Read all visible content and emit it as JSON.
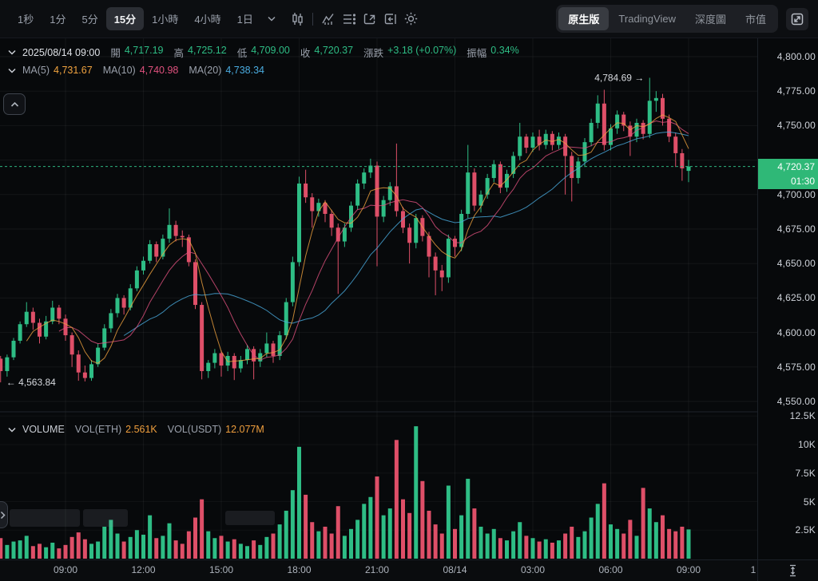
{
  "toolbar": {
    "intervals": [
      {
        "label": "1秒",
        "active": false
      },
      {
        "label": "1分",
        "active": false
      },
      {
        "label": "5分",
        "active": false
      },
      {
        "label": "15分",
        "active": true
      },
      {
        "label": "1小時",
        "active": false
      },
      {
        "label": "4小時",
        "active": false
      },
      {
        "label": "1日",
        "active": false
      }
    ],
    "view_tabs": [
      {
        "label": "原生版",
        "active": true
      },
      {
        "label": "TradingView",
        "active": false
      },
      {
        "label": "深度圖",
        "active": false
      },
      {
        "label": "市值",
        "active": false
      }
    ]
  },
  "legend": {
    "date": "2025/08/14 09:00",
    "fields": [
      {
        "label": "開",
        "value": "4,717.19"
      },
      {
        "label": "高",
        "value": "4,725.12"
      },
      {
        "label": "低",
        "value": "4,709.00"
      },
      {
        "label": "收",
        "value": "4,720.37"
      },
      {
        "label": "漲跌",
        "value": "+3.18 (+0.07%)"
      },
      {
        "label": "振幅",
        "value": "0.34%"
      }
    ]
  },
  "ma_legend": [
    {
      "label": "MA(5)",
      "value": "4,731.67"
    },
    {
      "label": "MA(10)",
      "value": "4,740.98"
    },
    {
      "label": "MA(20)",
      "value": "4,738.34"
    }
  ],
  "volume_legend": {
    "title": "VOLUME",
    "fields": [
      {
        "label": "VOL(ETH)",
        "value": "2.561K"
      },
      {
        "label": "VOL(USDT)",
        "value": "12.077M"
      }
    ]
  },
  "price_axis": {
    "ticks": [
      {
        "label": "4,800.00",
        "price": 4800
      },
      {
        "label": "4,775.00",
        "price": 4775
      },
      {
        "label": "4,750.00",
        "price": 4750
      },
      {
        "label": "4,700.00",
        "price": 4700
      },
      {
        "label": "4,675.00",
        "price": 4675
      },
      {
        "label": "4,650.00",
        "price": 4650
      },
      {
        "label": "4,625.00",
        "price": 4625
      },
      {
        "label": "4,600.00",
        "price": 4600
      },
      {
        "label": "4,575.00",
        "price": 4575
      },
      {
        "label": "4,550.00",
        "price": 4550
      }
    ],
    "badge": {
      "price": "4,720.37",
      "countdown": "01:30"
    }
  },
  "volume_axis": [
    {
      "label": "12.5K",
      "value": 12.5
    },
    {
      "label": "10K",
      "value": 10
    },
    {
      "label": "7.5K",
      "value": 7.5
    },
    {
      "label": "5K",
      "value": 5
    },
    {
      "label": "2.5K",
      "value": 2.5
    }
  ],
  "time_axis": [
    "09:00",
    "12:00",
    "15:00",
    "18:00",
    "21:00",
    "08/14",
    "03:00",
    "06:00",
    "09:00",
    "1"
  ],
  "annotations": {
    "high": "4,784.69",
    "low": "4,563.84"
  },
  "colors": {
    "up": "#2ebd85",
    "down": "#de4f68",
    "ma5": "#f0a33f",
    "ma10": "#e0517e",
    "ma20": "#4aabdf",
    "volume_value": "#ee9e3d",
    "badge_bg": "#2fb877"
  },
  "chart_data": {
    "type": "candlestick",
    "interval": "15分",
    "price_axis_range": [
      4550,
      4800
    ],
    "last_price": 4720.37,
    "high_marker": 4784.69,
    "low_marker": 4563.84,
    "volume_unit": "K",
    "candles": [
      [
        4581,
        4583,
        4563.84,
        4572,
        1.8
      ],
      [
        4572,
        4584,
        4568,
        4582,
        1.2
      ],
      [
        4582,
        4596,
        4580,
        4594,
        1.5
      ],
      [
        4594,
        4608,
        4592,
        4606,
        1.6
      ],
      [
        4606,
        4622,
        4604,
        4615,
        2.0
      ],
      [
        4615,
        4618,
        4602,
        4607,
        1.1
      ],
      [
        4607,
        4610,
        4592,
        4597,
        1.3
      ],
      [
        4597,
        4612,
        4595,
        4608,
        1.0
      ],
      [
        4608,
        4623,
        4606,
        4618,
        1.4
      ],
      [
        4618,
        4620,
        4606,
        4610,
        0.9
      ],
      [
        4610,
        4613,
        4594,
        4598,
        1.2
      ],
      [
        4598,
        4600,
        4575,
        4584,
        1.9
      ],
      [
        4584,
        4587,
        4565,
        4571,
        2.3
      ],
      [
        4571,
        4576,
        4564.5,
        4567,
        1.7
      ],
      [
        4567,
        4580,
        4565,
        4577,
        1.3
      ],
      [
        4577,
        4592,
        4575,
        4589,
        1.5
      ],
      [
        4589,
        4606,
        4587,
        4603,
        2.8
      ],
      [
        4603,
        4617,
        4600,
        4614,
        3.4
      ],
      [
        4614,
        4628,
        4611,
        4625,
        2.2
      ],
      [
        4625,
        4627,
        4613,
        4618,
        1.5
      ],
      [
        4618,
        4635,
        4616,
        4632,
        1.9
      ],
      [
        4632,
        4648,
        4630,
        4645,
        2.5
      ],
      [
        4645,
        4655,
        4642,
        4652,
        2.1
      ],
      [
        4652,
        4667,
        4650,
        4664,
        3.8
      ],
      [
        4664,
        4666,
        4651,
        4655,
        1.8
      ],
      [
        4655,
        4671,
        4653,
        4668,
        2.0
      ],
      [
        4668,
        4690,
        4665,
        4678,
        3.1
      ],
      [
        4678,
        4681,
        4666,
        4670,
        1.6
      ],
      [
        4670,
        4674,
        4662,
        4669,
        1.3
      ],
      [
        4669,
        4671,
        4648,
        4651,
        2.4
      ],
      [
        4651,
        4653,
        4617,
        4620,
        3.6
      ],
      [
        4620,
        4622,
        4566,
        4572,
        5.2
      ],
      [
        4572,
        4580,
        4567,
        4578,
        2.4
      ],
      [
        4578,
        4588,
        4574,
        4585,
        1.8
      ],
      [
        4585,
        4587,
        4568,
        4576,
        2.0
      ],
      [
        4576,
        4586,
        4572,
        4583,
        1.5
      ],
      [
        4583,
        4585,
        4565.5,
        4574,
        1.7
      ],
      [
        4574,
        4583,
        4571,
        4580,
        1.3
      ],
      [
        4580,
        4591,
        4577,
        4588,
        1.1
      ],
      [
        4588,
        4590,
        4566,
        4579,
        1.6
      ],
      [
        4579,
        4588,
        4575,
        4585,
        1.2
      ],
      [
        4585,
        4600,
        4582,
        4592,
        1.9
      ],
      [
        4592,
        4594,
        4578,
        4583,
        2.2
      ],
      [
        4583,
        4601,
        4580,
        4598,
        3.0
      ],
      [
        4598,
        4625,
        4595,
        4622,
        4.2
      ],
      [
        4622,
        4655,
        4619,
        4651,
        6.0
      ],
      [
        4651,
        4713,
        4648,
        4708,
        9.8
      ],
      [
        4708,
        4718,
        4694,
        4698,
        5.6
      ],
      [
        4698,
        4701,
        4676,
        4688,
        3.2
      ],
      [
        4688,
        4697,
        4684,
        4694,
        2.4
      ],
      [
        4694,
        4696,
        4680,
        4686,
        2.8
      ],
      [
        4686,
        4689,
        4670,
        4676,
        2.2
      ],
      [
        4676,
        4679,
        4628,
        4666,
        4.6
      ],
      [
        4666,
        4679,
        4662,
        4676,
        2.0
      ],
      [
        4676,
        4695,
        4673,
        4692,
        2.6
      ],
      [
        4692,
        4711,
        4689,
        4708,
        3.4
      ],
      [
        4708,
        4719,
        4704,
        4716,
        4.8
      ],
      [
        4716,
        4726,
        4712,
        4721,
        5.4
      ],
      [
        4721,
        4724,
        4648,
        4684,
        7.2
      ],
      [
        4684,
        4699,
        4680,
        4696,
        3.8
      ],
      [
        4696,
        4709,
        4692,
        4706,
        4.4
      ],
      [
        4706,
        4737,
        4684,
        4688,
        10.4
      ],
      [
        4688,
        4691,
        4672,
        4676,
        5.2
      ],
      [
        4676,
        4679,
        4650,
        4665,
        4.0
      ],
      [
        4665,
        4686,
        4661,
        4683,
        11.6
      ],
      [
        4683,
        4685,
        4666,
        4670,
        6.8
      ],
      [
        4670,
        4673,
        4640,
        4655,
        4.2
      ],
      [
        4655,
        4658,
        4627,
        4645,
        3.0
      ],
      [
        4645,
        4649,
        4630,
        4640,
        2.2
      ],
      [
        4640,
        4671,
        4636,
        4668,
        6.4
      ],
      [
        4668,
        4670,
        4655,
        4662,
        2.6
      ],
      [
        4662,
        4689,
        4659,
        4686,
        3.8
      ],
      [
        4686,
        4736,
        4683,
        4716,
        7.0
      ],
      [
        4716,
        4719,
        4688,
        4692,
        4.4
      ],
      [
        4692,
        4703,
        4687,
        4700,
        2.8
      ],
      [
        4700,
        4715,
        4697,
        4712,
        2.2
      ],
      [
        4712,
        4725,
        4709,
        4722,
        2.6
      ],
      [
        4722,
        4724,
        4701,
        4705,
        1.8
      ],
      [
        4705,
        4718,
        4702,
        4715,
        1.6
      ],
      [
        4715,
        4731,
        4712,
        4728,
        2.4
      ],
      [
        4728,
        4752,
        4725,
        4742,
        3.2
      ],
      [
        4742,
        4744,
        4730,
        4734,
        2.0
      ],
      [
        4734,
        4745,
        4731,
        4742,
        1.8
      ],
      [
        4742,
        4747,
        4732,
        4736,
        1.5
      ],
      [
        4736,
        4747,
        4733,
        4744,
        1.7
      ],
      [
        4744,
        4746,
        4732,
        4736,
        1.4
      ],
      [
        4736,
        4745,
        4733,
        4742,
        1.6
      ],
      [
        4742,
        4744,
        4700,
        4728,
        2.2
      ],
      [
        4728,
        4731,
        4695,
        4712,
        2.8
      ],
      [
        4712,
        4727,
        4708,
        4724,
        1.9
      ],
      [
        4724,
        4741,
        4720,
        4738,
        2.4
      ],
      [
        4738,
        4755,
        4735,
        4752,
        3.6
      ],
      [
        4752,
        4772,
        4748,
        4766,
        4.8
      ],
      [
        4766,
        4776,
        4732,
        4736,
        6.6
      ],
      [
        4736,
        4751,
        4732,
        4748,
        3.0
      ],
      [
        4748,
        4761,
        4744,
        4758,
        2.6
      ],
      [
        4758,
        4760,
        4746,
        4750,
        2.2
      ],
      [
        4750,
        4753,
        4728,
        4742,
        3.4
      ],
      [
        4742,
        4755,
        4738,
        4752,
        2.0
      ],
      [
        4752,
        4754,
        4740,
        4744,
        6.2
      ],
      [
        4744,
        4784.69,
        4741,
        4768,
        4.4
      ],
      [
        4768,
        4775,
        4760,
        4770,
        3.2
      ],
      [
        4770,
        4773,
        4750,
        4755,
        3.8
      ],
      [
        4755,
        4758,
        4738,
        4742,
        2.6
      ],
      [
        4742,
        4745,
        4720,
        4730,
        2.4
      ],
      [
        4730,
        4733,
        4710,
        4719,
        2.8
      ],
      [
        4717.19,
        4725.12,
        4709,
        4720.37,
        2.561
      ]
    ]
  }
}
